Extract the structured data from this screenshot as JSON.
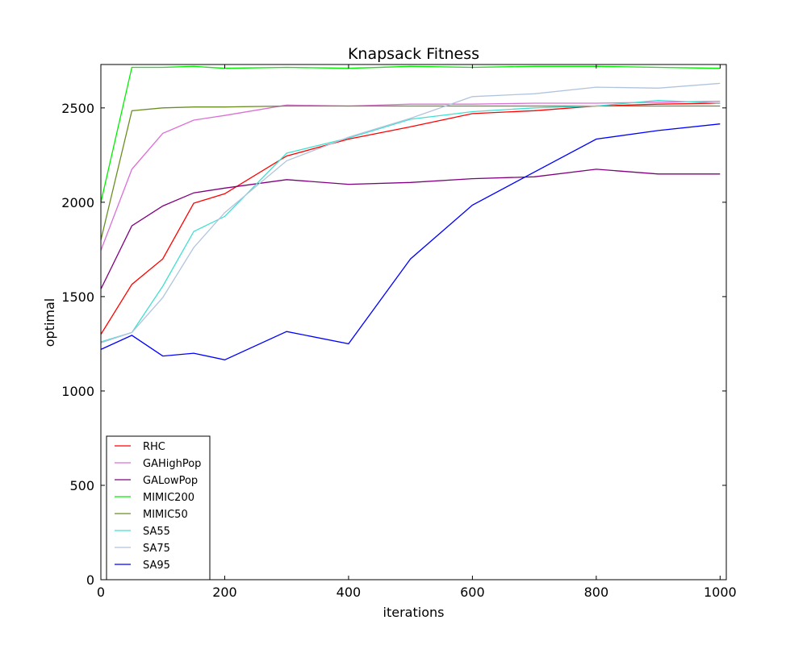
{
  "chart_data": {
    "type": "line",
    "title": "Knapsack Fitness",
    "xlabel": "iterations",
    "ylabel": "optimal",
    "xlim": [
      0,
      1010
    ],
    "ylim": [
      0,
      2730
    ],
    "xticks": [
      0,
      200,
      400,
      600,
      800,
      1000
    ],
    "yticks": [
      0,
      500,
      1000,
      1500,
      2000,
      2500
    ],
    "grid": false,
    "legend_position": "bottom-left",
    "x": [
      0,
      50,
      100,
      150,
      200,
      300,
      400,
      500,
      600,
      700,
      800,
      900,
      1000
    ],
    "series": [
      {
        "name": "RHC",
        "color": "#ff0000",
        "values": [
          1300,
          1565,
          1700,
          1995,
          2045,
          2245,
          2335,
          2400,
          2470,
          2485,
          2510,
          2520,
          2525
        ]
      },
      {
        "name": "GAHighPop",
        "color": "#da70d6",
        "values": [
          1745,
          2175,
          2365,
          2435,
          2460,
          2515,
          2510,
          2520,
          2520,
          2525,
          2525,
          2530,
          2535
        ]
      },
      {
        "name": "GALowPop",
        "color": "#800080",
        "values": [
          1540,
          1875,
          1980,
          2050,
          2075,
          2120,
          2095,
          2105,
          2125,
          2135,
          2175,
          2150,
          2150
        ]
      },
      {
        "name": "MIMIC200",
        "color": "#00ee00",
        "values": [
          2000,
          2715,
          2715,
          2720,
          2710,
          2715,
          2710,
          2720,
          2715,
          2720,
          2720,
          2715,
          2710
        ]
      },
      {
        "name": "MIMIC50",
        "color": "#6b8e23",
        "values": [
          1800,
          2485,
          2500,
          2505,
          2505,
          2510,
          2510,
          2510,
          2510,
          2510,
          2510,
          2510,
          2510
        ]
      },
      {
        "name": "SA55",
        "color": "#40e0d0",
        "values": [
          1260,
          1310,
          1555,
          1845,
          1925,
          2260,
          2340,
          2440,
          2480,
          2500,
          2510,
          2540,
          2525
        ]
      },
      {
        "name": "SA75",
        "color": "#b0c4de",
        "values": [
          1255,
          1310,
          1495,
          1760,
          1945,
          2220,
          2345,
          2445,
          2560,
          2575,
          2610,
          2605,
          2630
        ]
      },
      {
        "name": "SA95",
        "color": "#0000ff",
        "values": [
          1220,
          1295,
          1185,
          1200,
          1165,
          1315,
          1250,
          1700,
          1985,
          2160,
          2335,
          2380,
          2415
        ]
      }
    ]
  }
}
